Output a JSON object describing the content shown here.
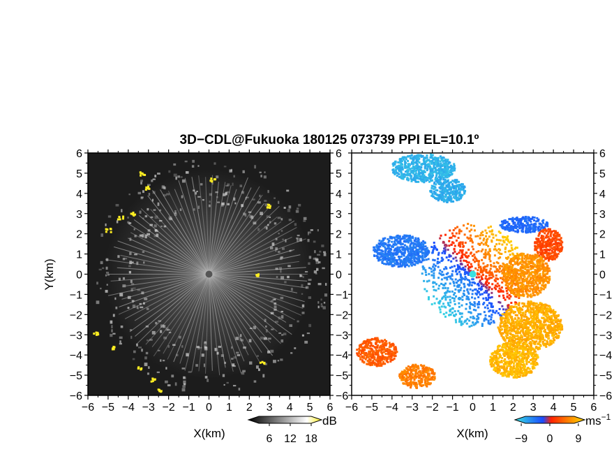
{
  "title": "3D−CDL@Fukuoka 180125 073739 PPI EL=10.1º",
  "colors": {
    "background": "#ffffff",
    "panel_bg_dark": "#1c1c1c",
    "highlight_yellow": "#ffee22",
    "velocity_negative": "#1a4cff",
    "velocity_zero": "#39e0e0",
    "velocity_positive": "#ffdd00"
  },
  "chart_data": [
    {
      "type": "heatmap",
      "panel": "left",
      "quantity": "signal intensity",
      "xlabel": "X(km)",
      "ylabel": "Y(km)",
      "xlim": [
        -6,
        6
      ],
      "ylim": [
        -6,
        6
      ],
      "xticks": [
        "−6",
        "−5",
        "−4",
        "−3",
        "−2",
        "−1",
        "0",
        "1",
        "2",
        "3",
        "4",
        "5",
        "6"
      ],
      "yticks": [
        "−6",
        "−5",
        "−4",
        "−3",
        "−2",
        "−1",
        "0",
        "1",
        "2",
        "3",
        "4",
        "5",
        "6"
      ],
      "colorbar": {
        "unit": "dB",
        "ticks": [
          "6",
          "12",
          "18"
        ],
        "tick_values": [
          6,
          12,
          18
        ],
        "range": [
          0,
          21
        ],
        "colors": [
          "#000000",
          "#ffffff",
          "#ffee22"
        ]
      },
      "strong_echo_points": [
        [
          -3.3,
          5.0
        ],
        [
          -3.1,
          4.3
        ],
        [
          -3.8,
          3.0
        ],
        [
          -4.4,
          2.8
        ],
        [
          -5.0,
          2.2
        ],
        [
          0.2,
          4.7
        ],
        [
          2.9,
          3.4
        ],
        [
          -5.6,
          -2.9
        ],
        [
          -4.7,
          -3.6
        ],
        [
          -3.4,
          -4.6
        ],
        [
          -2.8,
          -5.2
        ],
        [
          -2.4,
          -5.7
        ],
        [
          2.6,
          -4.4
        ],
        [
          2.3,
          0
        ]
      ]
    },
    {
      "type": "heatmap",
      "panel": "right",
      "quantity": "radial velocity",
      "xlabel": "X(km)",
      "ylabel": "",
      "xlim": [
        -6,
        6
      ],
      "ylim": [
        -6,
        6
      ],
      "xticks": [
        "−6",
        "−5",
        "−4",
        "−3",
        "−2",
        "−1",
        "0",
        "1",
        "2",
        "3",
        "4",
        "5",
        "6"
      ],
      "yticks": [
        "−6",
        "−5",
        "−4",
        "−3",
        "−2",
        "−1",
        "0",
        "1",
        "2",
        "3",
        "4",
        "5",
        "6"
      ],
      "colorbar": {
        "unit": "ms",
        "unit_exponent": "−1",
        "ticks": [
          "−9",
          "0",
          "9"
        ],
        "tick_values": [
          -9,
          0,
          9
        ],
        "range": [
          -11,
          11
        ],
        "colors": [
          "#39e0e0",
          "#1a4cff",
          "#ff2200",
          "#ffdd00"
        ]
      },
      "regions": [
        {
          "kind": "cluster",
          "center": [
            -2.5,
            5.3
          ],
          "rx": 1.6,
          "ry": 0.7,
          "v": -8
        },
        {
          "kind": "cluster",
          "center": [
            -1.3,
            4.2
          ],
          "rx": 0.9,
          "ry": 0.6,
          "v": -7.5
        },
        {
          "kind": "cluster",
          "center": [
            2.5,
            2.5
          ],
          "rx": 1.2,
          "ry": 0.4,
          "v": -3
        },
        {
          "kind": "cluster",
          "center": [
            3.7,
            1.5
          ],
          "rx": 0.7,
          "ry": 0.8,
          "v": 3
        },
        {
          "kind": "cluster",
          "center": [
            -3.6,
            1.2
          ],
          "rx": 1.4,
          "ry": 0.8,
          "v": -4
        },
        {
          "kind": "cluster",
          "center": [
            -4.8,
            -3.8
          ],
          "rx": 1.0,
          "ry": 0.7,
          "v": 4
        },
        {
          "kind": "cluster",
          "center": [
            -2.8,
            -5.0
          ],
          "rx": 0.9,
          "ry": 0.6,
          "v": 6
        },
        {
          "kind": "cluster",
          "center": [
            2.8,
            -2.5
          ],
          "rx": 1.6,
          "ry": 1.2,
          "v": 8.5
        },
        {
          "kind": "cluster",
          "center": [
            2.0,
            -4.2
          ],
          "rx": 1.2,
          "ry": 0.9,
          "v": 9
        },
        {
          "kind": "cluster",
          "center": [
            2.6,
            0.0
          ],
          "rx": 1.2,
          "ry": 1.1,
          "v": 7
        }
      ]
    }
  ]
}
